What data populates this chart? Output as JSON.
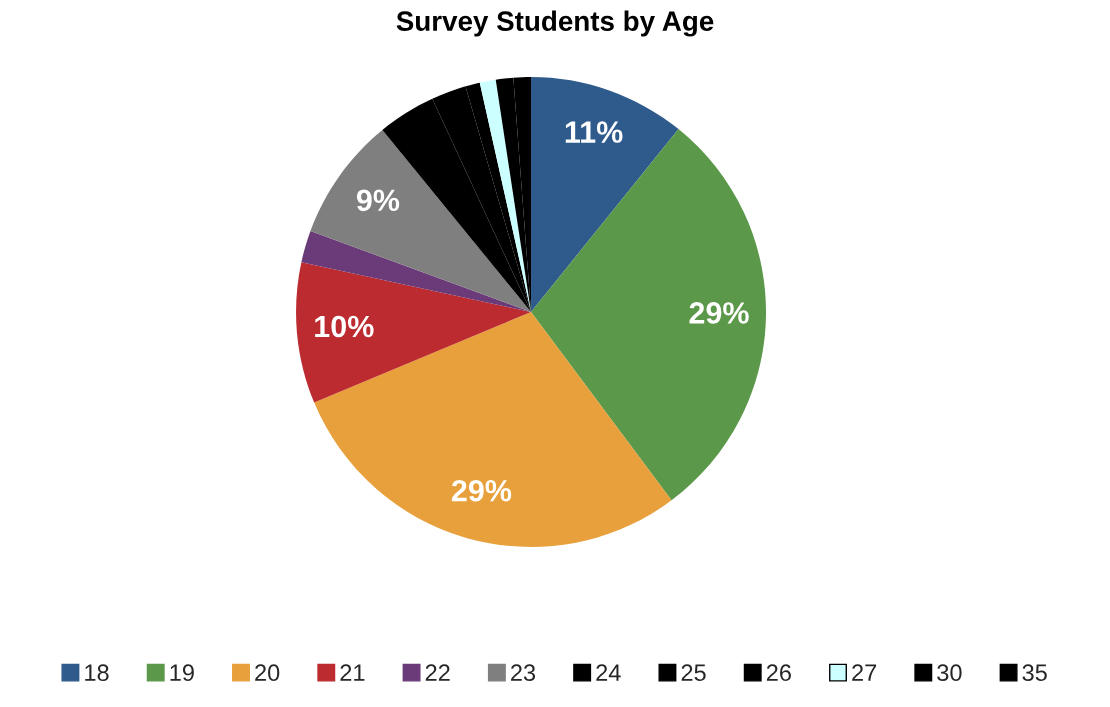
{
  "chart_data": {
    "type": "pie",
    "title": "Survey Students by Age",
    "categories": [
      "18",
      "19",
      "20",
      "21",
      "22",
      "23",
      "24",
      "25",
      "26",
      "27",
      "30",
      "35"
    ],
    "values": [
      10.8,
      29.0,
      28.9,
      9.7,
      2.2,
      8.5,
      4.0,
      2.4,
      1.0,
      1.1,
      1.2,
      1.2
    ],
    "colors": [
      "#2e5a8c",
      "#5c984a",
      "#e8a03c",
      "#bc2b30",
      "#6b3a78",
      "#7f7f7f",
      "#000000",
      "#000000",
      "#000000",
      "#ccffff",
      "#000000",
      "#000000"
    ],
    "value_labels": [
      "11%",
      "29%",
      "29%",
      "10%",
      null,
      "9%",
      null,
      null,
      null,
      null,
      null,
      null
    ],
    "legend": "bottom"
  }
}
